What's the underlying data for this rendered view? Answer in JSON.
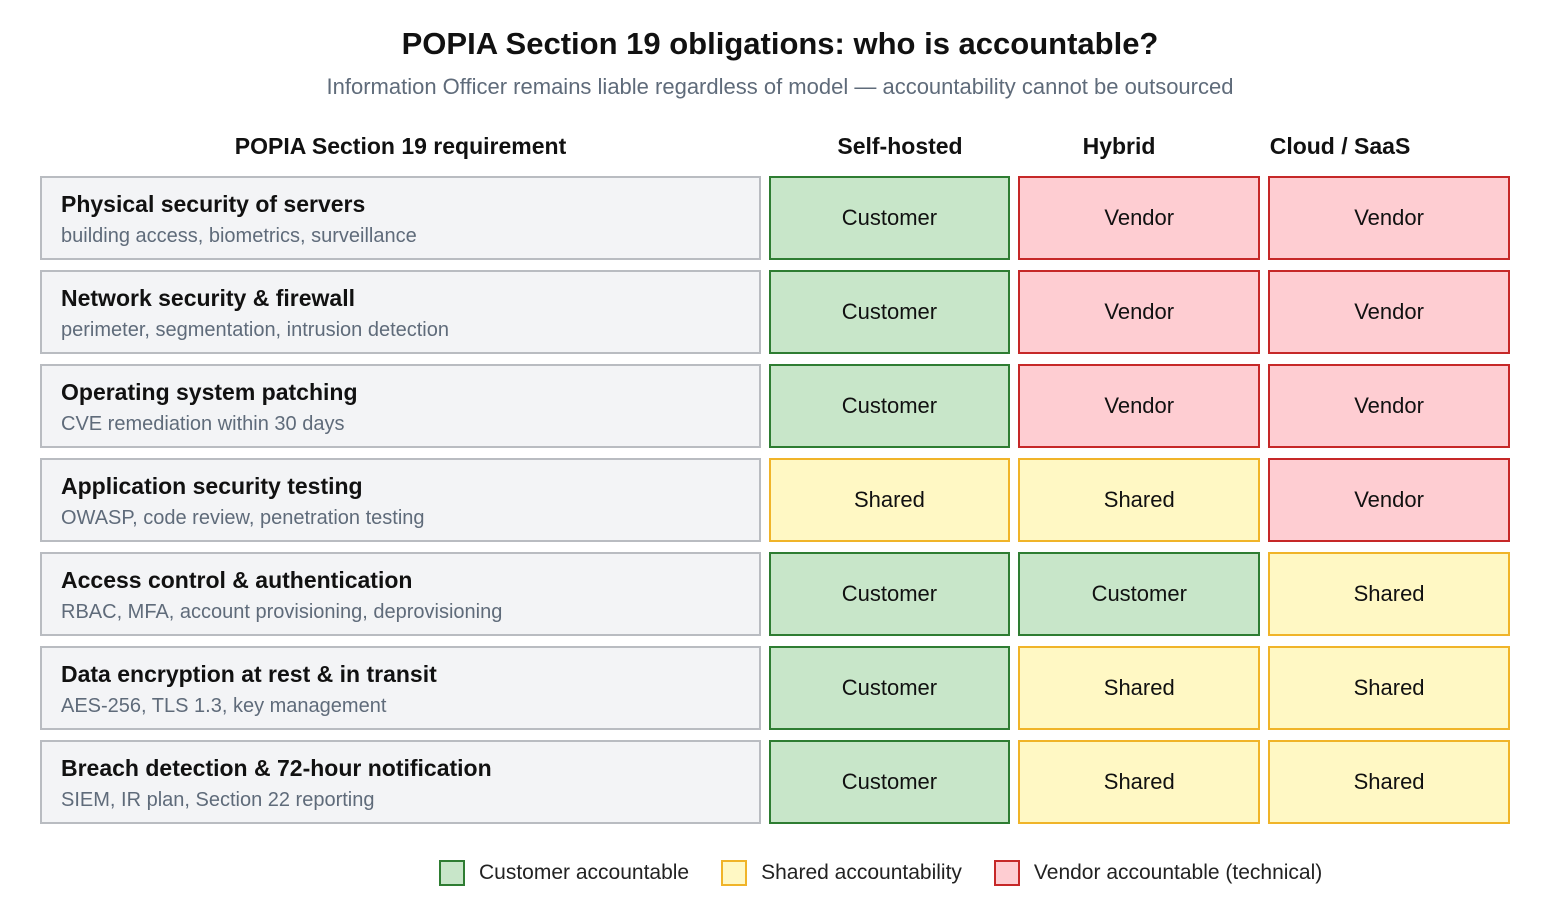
{
  "title": "POPIA Section 19 obligations: who is accountable?",
  "subtitle": "Information Officer remains liable regardless of model — accountability cannot be outsourced",
  "headers": {
    "requirement": "POPIA Section 19 requirement",
    "columns": [
      "Self-hosted",
      "Hybrid",
      "Cloud / SaaS"
    ]
  },
  "colors": {
    "customer_fill": "#c8e6c9",
    "customer_border": "#2e7d32",
    "shared_fill": "#fff8c4",
    "shared_border": "#f0b429",
    "vendor_fill": "#fecdd2",
    "vendor_border": "#c62828"
  },
  "rows": [
    {
      "title": "Physical security of servers",
      "detail": "building access, biometrics, surveillance",
      "cells": [
        {
          "label": "Customer",
          "kind": "customer"
        },
        {
          "label": "Vendor",
          "kind": "vendor"
        },
        {
          "label": "Vendor",
          "kind": "vendor"
        }
      ]
    },
    {
      "title": "Network security & firewall",
      "detail": "perimeter, segmentation, intrusion detection",
      "cells": [
        {
          "label": "Customer",
          "kind": "customer"
        },
        {
          "label": "Vendor",
          "kind": "vendor"
        },
        {
          "label": "Vendor",
          "kind": "vendor"
        }
      ]
    },
    {
      "title": "Operating system patching",
      "detail": "CVE remediation within 30 days",
      "cells": [
        {
          "label": "Customer",
          "kind": "customer"
        },
        {
          "label": "Vendor",
          "kind": "vendor"
        },
        {
          "label": "Vendor",
          "kind": "vendor"
        }
      ]
    },
    {
      "title": "Application security testing",
      "detail": "OWASP, code review, penetration testing",
      "cells": [
        {
          "label": "Shared",
          "kind": "shared"
        },
        {
          "label": "Shared",
          "kind": "shared"
        },
        {
          "label": "Vendor",
          "kind": "vendor"
        }
      ]
    },
    {
      "title": "Access control & authentication",
      "detail": "RBAC, MFA, account provisioning, deprovisioning",
      "cells": [
        {
          "label": "Customer",
          "kind": "customer"
        },
        {
          "label": "Customer",
          "kind": "customer"
        },
        {
          "label": "Shared",
          "kind": "shared"
        }
      ]
    },
    {
      "title": "Data encryption at rest & in transit",
      "detail": "AES-256, TLS 1.3, key management",
      "cells": [
        {
          "label": "Customer",
          "kind": "customer"
        },
        {
          "label": "Shared",
          "kind": "shared"
        },
        {
          "label": "Shared",
          "kind": "shared"
        }
      ]
    },
    {
      "title": "Breach detection & 72-hour notification",
      "detail": "SIEM, IR plan, Section 22 reporting",
      "cells": [
        {
          "label": "Customer",
          "kind": "customer"
        },
        {
          "label": "Shared",
          "kind": "shared"
        },
        {
          "label": "Shared",
          "kind": "shared"
        }
      ]
    }
  ],
  "legend": [
    {
      "label": "Customer accountable",
      "kind": "customer"
    },
    {
      "label": "Shared accountability",
      "kind": "shared"
    },
    {
      "label": "Vendor accountable (technical)",
      "kind": "vendor"
    }
  ]
}
